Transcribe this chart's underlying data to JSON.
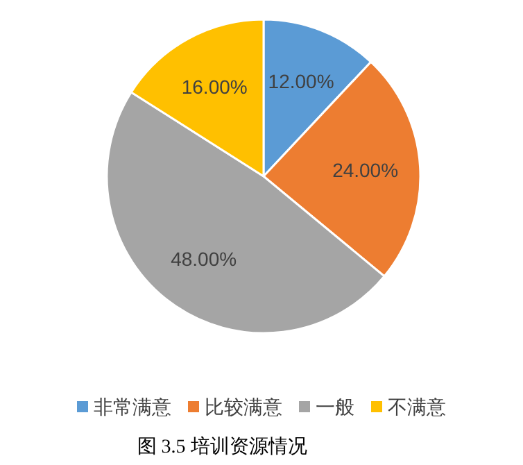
{
  "chart_data": {
    "type": "pie",
    "categories": [
      "非常满意",
      "比较满意",
      "一般",
      "不满意"
    ],
    "values": [
      12,
      24,
      48,
      16
    ],
    "value_labels": [
      "12.00%",
      "24.00%",
      "48.00%",
      "16.00%"
    ],
    "colors": [
      "#5b9bd5",
      "#ed7d31",
      "#a5a5a5",
      "#ffc000"
    ],
    "legend": "bottom",
    "annotations": [
      "图 3.5  培训资源情况"
    ]
  }
}
